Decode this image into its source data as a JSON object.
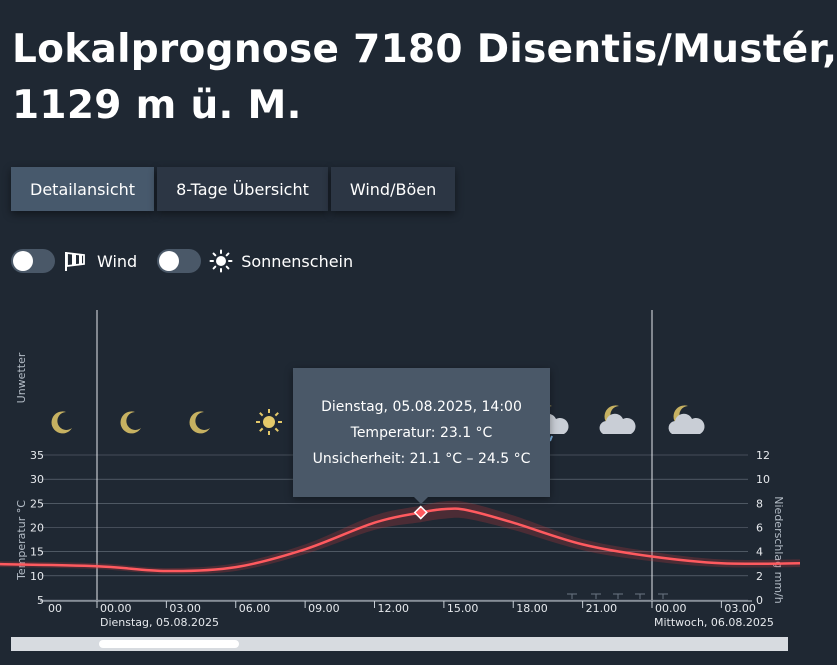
{
  "header": {
    "title_line1": "Lokalprognose 7180 Disentis/Mustér,",
    "title_line2": "1129 m ü. M."
  },
  "tabs": [
    {
      "label": "Detailansicht",
      "active": true
    },
    {
      "label": "8-Tage Übersicht",
      "active": false
    },
    {
      "label": "Wind/Böen",
      "active": false
    }
  ],
  "toggles": {
    "wind": {
      "label": "Wind",
      "icon": "wind-icon",
      "on": false
    },
    "sun": {
      "label": "Sonnenschein",
      "icon": "sun-icon",
      "on": false
    }
  },
  "weather_icons": [
    "moon-icon",
    "moon-icon",
    "moon-icon",
    "sun-icon",
    "partly-cloudy-icon",
    "partly-cloudy-icon",
    "partly-cloudy-icon",
    "cloud-moon-rain-icon",
    "cloud-moon-icon",
    "cloud-moon-icon"
  ],
  "tooltip": {
    "line1": "Dienstag, 05.08.2025, 14:00",
    "line2": "Temperatur: 23.1 °C",
    "line3": "Unsicherheit: 21.1 °C – 24.5 °C"
  },
  "scrollbar": {
    "position": 0.12
  },
  "chart_data": {
    "type": "line",
    "band_label": "Unwetter",
    "ylabel": "Temperatur °C",
    "ylabel_right": "Niederschlag mm/h",
    "ylim": [
      5,
      35
    ],
    "yticks": [
      "35",
      "30",
      "25",
      "20",
      "15",
      "10",
      "5"
    ],
    "ylim_right": [
      0,
      12
    ],
    "yticks_right": [
      "12",
      "10",
      "8",
      "6",
      "4",
      "2",
      "0"
    ],
    "x_ticks": [
      "00",
      "00.00",
      "03.00",
      "06.00",
      "09.00",
      "12.00",
      "15.00",
      "18.00",
      "21.00",
      "00.00",
      "03.00"
    ],
    "day_labels": [
      "Dienstag, 05.08.2025",
      "Mittwoch, 06.08.2025"
    ],
    "series": [
      {
        "x": [
          "05.08. 00:00",
          "05.08. 03:00",
          "05.08. 06:00",
          "05.08. 09:00",
          "05.08. 12:00",
          "05.08. 14:00",
          "05.08. 15:00",
          "05.08. 16:00",
          "05.08. 18:00",
          "05.08. 21:00",
          "06.08. 00:00",
          "06.08. 03:00"
        ],
        "values": [
          12.0,
          11.0,
          11.8,
          15.5,
          21.0,
          23.1,
          23.8,
          23.6,
          21.0,
          16.5,
          14.0,
          12.6
        ],
        "lower": [
          11.4,
          10.4,
          11.0,
          14.5,
          19.5,
          21.1,
          21.8,
          21.8,
          19.5,
          15.3,
          13.0,
          11.8
        ],
        "upper": [
          12.6,
          11.6,
          12.6,
          16.5,
          22.5,
          24.5,
          25.4,
          25.2,
          22.5,
          17.6,
          15.0,
          13.4
        ]
      }
    ],
    "highlight": {
      "x": "05.08. 14:00",
      "value": 23.1
    },
    "grid": true
  }
}
